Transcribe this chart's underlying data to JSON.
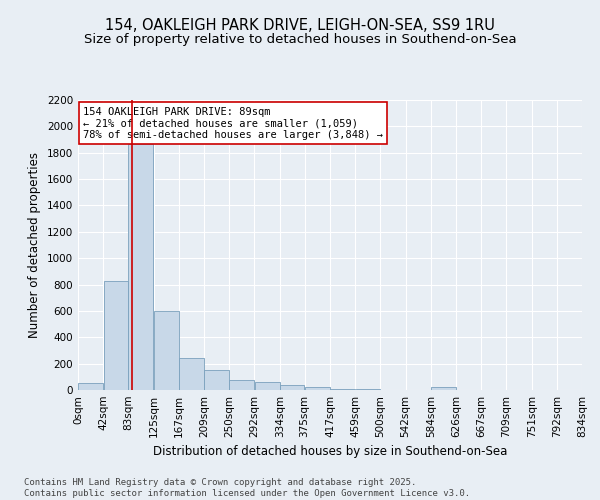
{
  "title_line1": "154, OAKLEIGH PARK DRIVE, LEIGH-ON-SEA, SS9 1RU",
  "title_line2": "Size of property relative to detached houses in Southend-on-Sea",
  "xlabel": "Distribution of detached houses by size in Southend-on-Sea",
  "ylabel": "Number of detached properties",
  "bar_color": "#c8d8e8",
  "bar_edge_color": "#7aa0bc",
  "bin_edges": [
    0,
    42,
    83,
    125,
    167,
    209,
    250,
    292,
    334,
    375,
    417,
    459,
    500,
    542,
    584,
    626,
    667,
    709,
    751,
    792,
    834
  ],
  "bin_labels": [
    "0sqm",
    "42sqm",
    "83sqm",
    "125sqm",
    "167sqm",
    "209sqm",
    "250sqm",
    "292sqm",
    "334sqm",
    "375sqm",
    "417sqm",
    "459sqm",
    "500sqm",
    "542sqm",
    "584sqm",
    "626sqm",
    "667sqm",
    "709sqm",
    "751sqm",
    "792sqm",
    "834sqm"
  ],
  "bar_heights": [
    50,
    830,
    1870,
    600,
    245,
    150,
    75,
    60,
    40,
    20,
    10,
    5,
    0,
    0,
    20,
    0,
    0,
    0,
    0,
    0
  ],
  "property_size": 89,
  "vline_color": "#cc0000",
  "annotation_text": "154 OAKLEIGH PARK DRIVE: 89sqm\n← 21% of detached houses are smaller (1,059)\n78% of semi-detached houses are larger (3,848) →",
  "annotation_box_color": "#ffffff",
  "annotation_box_edge": "#cc0000",
  "ylim": [
    0,
    2200
  ],
  "yticks": [
    0,
    200,
    400,
    600,
    800,
    1000,
    1200,
    1400,
    1600,
    1800,
    2000,
    2200
  ],
  "background_color": "#e8eef4",
  "plot_bg_color": "#e8eef4",
  "footer_text": "Contains HM Land Registry data © Crown copyright and database right 2025.\nContains public sector information licensed under the Open Government Licence v3.0.",
  "title_fontsize": 10.5,
  "subtitle_fontsize": 9.5,
  "axis_label_fontsize": 8.5,
  "tick_fontsize": 7.5,
  "annotation_fontsize": 7.5,
  "footer_fontsize": 6.5
}
